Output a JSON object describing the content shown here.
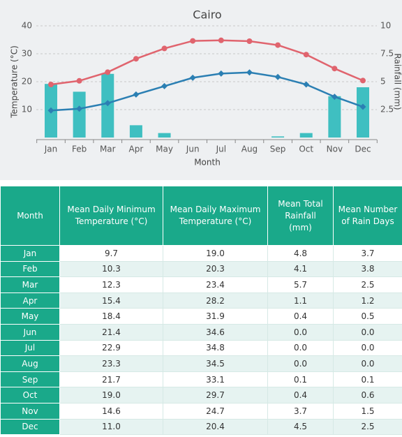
{
  "chart_data": {
    "type": "bar-line",
    "title": "Cairo",
    "x_label": "Month",
    "y_label": "Temperature (°C)",
    "y2_label": "Rainfall (mm)",
    "categories": [
      "Jan",
      "Feb",
      "Mar",
      "Apr",
      "May",
      "Jun",
      "Jul",
      "Aug",
      "Sep",
      "Oct",
      "Nov",
      "Dec"
    ],
    "series": [
      {
        "type": "bar",
        "axis": "y2",
        "color": "#3fbfc1",
        "values": [
          4.8,
          4.1,
          5.7,
          1.1,
          0.4,
          0.0,
          0.0,
          0.0,
          0.1,
          0.4,
          3.7,
          4.5
        ]
      },
      {
        "type": "line",
        "color": "#2b7fb3",
        "marker": "diamond",
        "values": [
          9.7,
          10.3,
          12.3,
          15.4,
          18.4,
          21.4,
          22.9,
          23.3,
          21.7,
          19.0,
          14.6,
          11.0
        ]
      },
      {
        "type": "line",
        "color": "#e0646e",
        "marker": "circle",
        "values": [
          19.0,
          20.3,
          23.4,
          28.2,
          31.9,
          34.6,
          34.8,
          34.5,
          33.1,
          29.7,
          24.7,
          20.4
        ]
      }
    ],
    "ylim": [
      0,
      40
    ],
    "yticks": [
      10,
      20,
      30,
      40
    ],
    "y2lim": [
      0,
      10
    ],
    "y2ticks": [
      2.5,
      5,
      7.5,
      10
    ],
    "grid": true
  },
  "table": {
    "headers": [
      "Month",
      "Mean Daily Minimum Temperature (°C)",
      "Mean Daily Maximum Temperature (°C)",
      "Mean Total Rainfall (mm)",
      "Mean Number of Rain Days"
    ],
    "rows": [
      [
        "Jan",
        "9.7",
        "19.0",
        "4.8",
        "3.7"
      ],
      [
        "Feb",
        "10.3",
        "20.3",
        "4.1",
        "3.8"
      ],
      [
        "Mar",
        "12.3",
        "23.4",
        "5.7",
        "2.5"
      ],
      [
        "Apr",
        "15.4",
        "28.2",
        "1.1",
        "1.2"
      ],
      [
        "May",
        "18.4",
        "31.9",
        "0.4",
        "0.5"
      ],
      [
        "Jun",
        "21.4",
        "34.6",
        "0.0",
        "0.0"
      ],
      [
        "Jul",
        "22.9",
        "34.8",
        "0.0",
        "0.0"
      ],
      [
        "Aug",
        "23.3",
        "34.5",
        "0.0",
        "0.0"
      ],
      [
        "Sep",
        "21.7",
        "33.1",
        "0.1",
        "0.1"
      ],
      [
        "Oct",
        "19.0",
        "29.7",
        "0.4",
        "0.6"
      ],
      [
        "Nov",
        "14.6",
        "24.7",
        "3.7",
        "1.5"
      ],
      [
        "Dec",
        "11.0",
        "20.4",
        "4.5",
        "2.5"
      ]
    ]
  }
}
